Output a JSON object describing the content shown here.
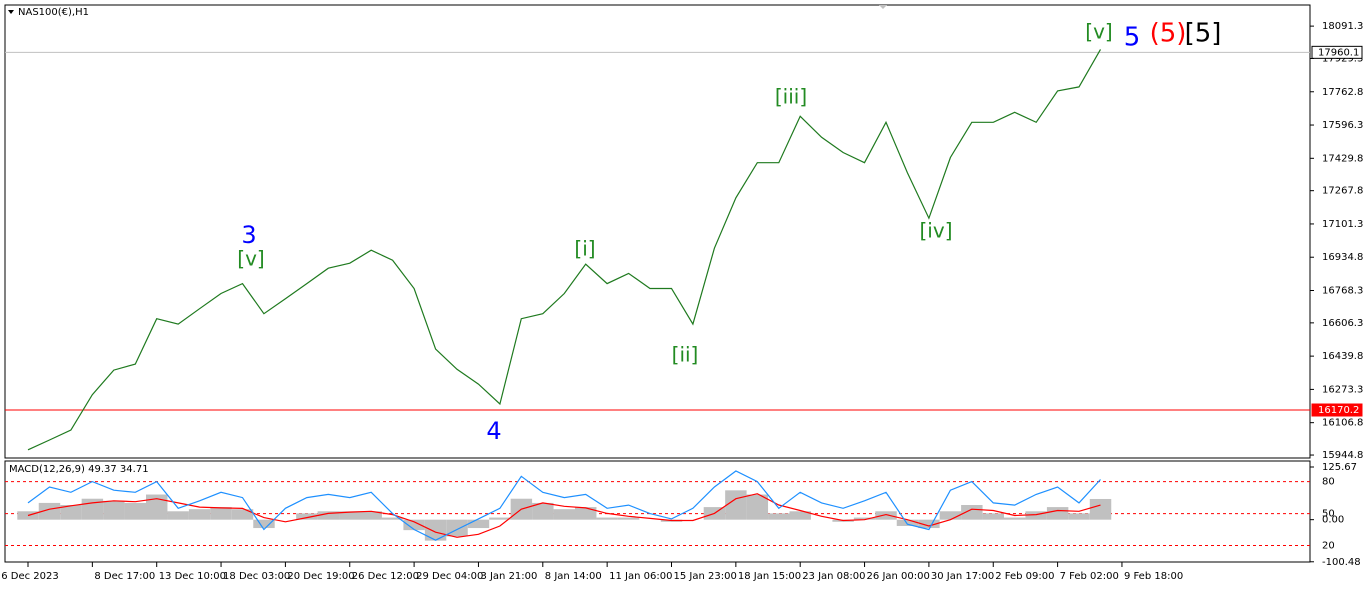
{
  "chart_data": [
    {
      "type": "line",
      "title": "NAS100(€),H1",
      "categories": [
        "6 Dec 2023",
        null,
        null,
        "8 Dec 17:00",
        null,
        null,
        "13 Dec 10:00",
        null,
        null,
        "18 Dec 03:00",
        null,
        null,
        "20 Dec 19:00",
        null,
        null,
        "26 Dec 12:00",
        null,
        null,
        "29 Dec 04:00",
        null,
        null,
        "3 Jan 21:00",
        null,
        null,
        "8 Jan 14:00",
        null,
        null,
        "11 Jan 06:00",
        null,
        null,
        "15 Jan 23:00",
        null,
        null,
        "18 Jan 15:00",
        null,
        null,
        "23 Jan 08:00",
        null,
        null,
        "26 Jan 00:00",
        null,
        null,
        "30 Jan 17:00",
        null,
        null,
        "2 Feb 09:00",
        null,
        null,
        "7 Feb 02:00",
        null,
        null,
        "9 Feb 18:00"
      ],
      "series": [
        {
          "color": "#1f7a1f",
          "values": [
            15971,
            16020,
            16070,
            16247,
            16370,
            16400,
            16627,
            16600,
            16677,
            16753,
            16803,
            16652,
            16727,
            16803,
            16880,
            16905,
            16970,
            16920,
            16778,
            16475,
            16374,
            16300,
            16200,
            16627,
            16652,
            16753,
            16900,
            16803,
            16854,
            16778,
            16778,
            16600,
            16980,
            17232,
            17408,
            17408,
            17640,
            17535,
            17459,
            17408,
            17610,
            17358,
            17130,
            17434,
            17610,
            17610,
            17660,
            17610,
            17767,
            17787,
            17975,
            null
          ]
        }
      ],
      "ylim": [
        15930,
        18197
      ],
      "yticks": [
        18091.3,
        17929.3,
        17762.8,
        17596.3,
        17429.8,
        17267.8,
        17101.3,
        16934.8,
        16768.3,
        16606.3,
        16439.8,
        16273.3,
        16106.8,
        15944.8
      ],
      "levels": [
        {
          "value": 17960.1,
          "label": "17960.1",
          "color": "#c0c0c0"
        },
        {
          "value": 16170.2,
          "label": "16170.2",
          "color": "#ff0000"
        }
      ],
      "annotations": [
        {
          "text": "3",
          "color": "#0000ff"
        },
        {
          "text": "[v]",
          "color": "#228b22"
        },
        {
          "text": "4",
          "color": "#0000ff"
        },
        {
          "text": "[i]",
          "color": "#228b22"
        },
        {
          "text": "[ii]",
          "color": "#228b22"
        },
        {
          "text": "[iii]",
          "color": "#228b22"
        },
        {
          "text": "[iv]",
          "color": "#228b22"
        },
        {
          "text": "[v]",
          "color": "#228b22"
        },
        {
          "text": "5",
          "color": "#0000ff"
        },
        {
          "text": "(5)",
          "color": "#ff0000"
        },
        {
          "text": "[5]",
          "color": "#000000"
        }
      ],
      "grid": false
    },
    {
      "type": "macd",
      "title": "MACD(12,26,9) 49.37 34.71",
      "series": [
        {
          "kind": "histogram",
          "color": "#c0c0c0",
          "values": [
            20,
            40,
            35,
            50,
            45,
            40,
            60,
            20,
            25,
            30,
            25,
            -20,
            0,
            15,
            20,
            20,
            20,
            5,
            -25,
            -50,
            -40,
            -20,
            5,
            50,
            40,
            25,
            30,
            5,
            5,
            0,
            -5,
            0,
            30,
            70,
            60,
            15,
            20,
            0,
            -5,
            5,
            20,
            -15,
            -20,
            20,
            35,
            15,
            5,
            20,
            30,
            15,
            49.37,
            null
          ]
        },
        {
          "kind": "line",
          "color": "#ff0000",
          "values": [
            10,
            25,
            33,
            40,
            45,
            43,
            50,
            40,
            30,
            28,
            27,
            5,
            -5,
            5,
            15,
            18,
            20,
            12,
            -5,
            -30,
            -42,
            -35,
            -15,
            25,
            40,
            32,
            28,
            15,
            8,
            3,
            -2,
            -2,
            15,
            50,
            62,
            35,
            22,
            8,
            -2,
            0,
            12,
            0,
            -15,
            0,
            25,
            22,
            10,
            12,
            22,
            20,
            34.71,
            null
          ]
        },
        {
          "kind": "line",
          "color": "#1e90ff",
          "axis": "y2",
          "values": [
            60,
            75,
            70,
            80,
            72,
            70,
            80,
            55,
            62,
            70,
            65,
            35,
            55,
            65,
            68,
            65,
            70,
            50,
            35,
            25,
            35,
            45,
            55,
            85,
            70,
            65,
            68,
            55,
            58,
            50,
            45,
            55,
            75,
            90,
            80,
            55,
            70,
            60,
            55,
            62,
            70,
            40,
            35,
            72,
            80,
            60,
            58,
            68,
            75,
            60,
            82,
            null
          ]
        }
      ],
      "ylim": [
        -101,
        140
      ],
      "yticks": [
        125.67,
        {
          "value": 0,
          "label": "0.00"
        },
        -100.48
      ],
      "y2lim": [
        4.5,
        99.4
      ],
      "y2ticks": [
        80,
        50,
        20
      ],
      "y2grid_color": "#ff0000"
    }
  ]
}
